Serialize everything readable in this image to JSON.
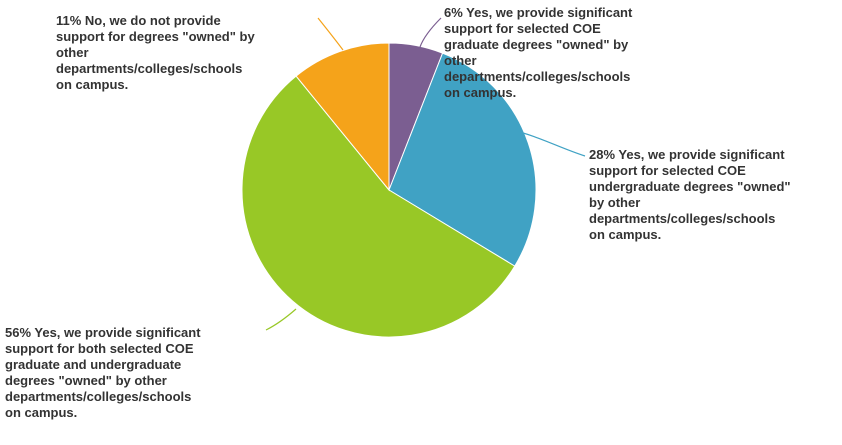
{
  "chart_data": {
    "type": "pie",
    "legend": "none",
    "slices": [
      {
        "percent": 6,
        "label": "6% Yes, we provide significant\nsupport for selected COE\ngraduate degrees \"owned\" by\nother\ndepartments/colleges/schools\non campus.",
        "color": "#7b5e91"
      },
      {
        "percent": 28,
        "label": "28% Yes, we provide significant\nsupport for selected COE\nundergraduate degrees \"owned\"\nby other\ndepartments/colleges/schools\non campus.",
        "color": "#40a2c4"
      },
      {
        "percent": 56,
        "label": "56% Yes, we provide significant\nsupport for both selected COE\ngraduate and undergraduate\ndegrees \"owned\" by other\ndepartments/colleges/schools\non campus.",
        "color": "#98c826"
      },
      {
        "percent": 11,
        "label": "11% No, we do not provide\nsupport for degrees \"owned\" by\nother\ndepartments/colleges/schools\non campus.",
        "color": "#f5a31a"
      }
    ]
  }
}
